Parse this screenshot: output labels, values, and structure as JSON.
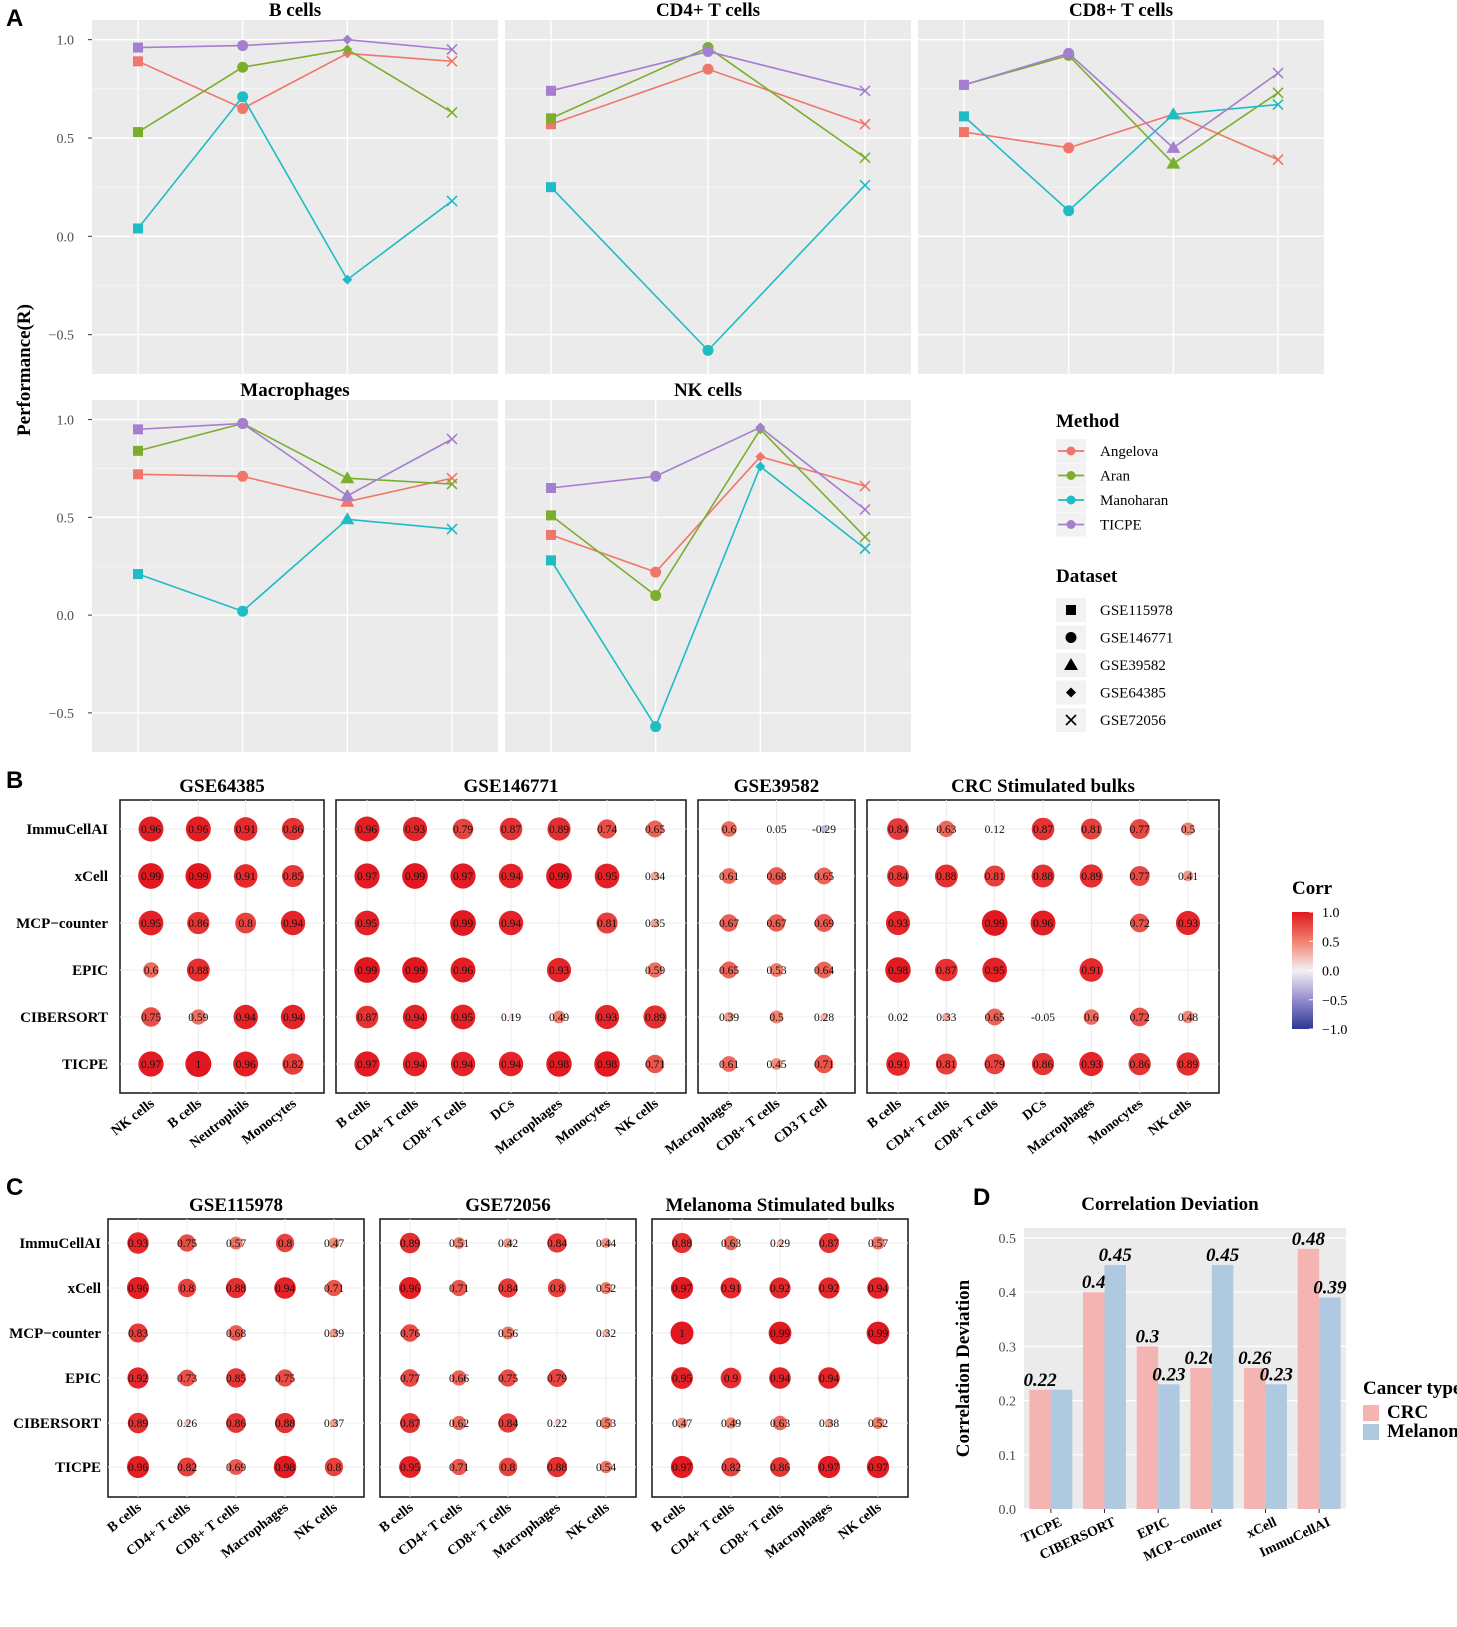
{
  "panel_labels": {
    "a": "A",
    "b": "B",
    "c": "C",
    "d": "D"
  },
  "colors": {
    "Angelova": "#f0756a",
    "Aran": "#7cae2e",
    "Manoharan": "#1fbcc3",
    "TICPE": "#a57fcf",
    "panel_bg": "#ebebeb",
    "grid": "#ffffff",
    "CRC": "#f4b4b1",
    "Melanoma": "#aec9e0"
  },
  "panel_a": {
    "ylabel": "Performance(R)",
    "yticks": [
      "1.0",
      "0.5",
      "0.0",
      "−0.5"
    ],
    "legend": {
      "method_title": "Method",
      "methods": [
        "Angelova",
        "Aran",
        "Manoharan",
        "TICPE"
      ],
      "dataset_title": "Dataset",
      "datasets": [
        "GSE115978",
        "GSE146771",
        "GSE39582",
        "GSE64385",
        "GSE72056"
      ],
      "shapes": [
        "square",
        "circle",
        "triangle",
        "diamond",
        "cross"
      ]
    }
  },
  "panel_b": {
    "rows": [
      "ImmuCellAI",
      "xCell",
      "MCP−counter",
      "EPIC",
      "CIBERSORT",
      "TICPE"
    ],
    "colorbar": {
      "title": "Corr",
      "ticks": [
        "1.0",
        "0.5",
        "0.0",
        "−0.5",
        "−1.0"
      ]
    }
  },
  "panel_c": {
    "rows": [
      "ImmuCellAI",
      "xCell",
      "MCP−counter",
      "EPIC",
      "CIBERSORT",
      "TICPE"
    ]
  },
  "chart_data": [
    {
      "type": "line",
      "panel": "A",
      "facet_order": [
        "B cells",
        "CD4+ T cells",
        "CD8+ T cells",
        "Macrophages",
        "NK cells"
      ],
      "ylim": [
        -0.7,
        1.1
      ],
      "facets": [
        {
          "title": "B cells",
          "x": [
            "GSE115978",
            "GSE146771",
            "GSE64385",
            "GSE72056"
          ],
          "series": [
            {
              "name": "Angelova",
              "values": [
                0.89,
                0.65,
                0.93,
                0.89
              ]
            },
            {
              "name": "Aran",
              "values": [
                0.53,
                0.86,
                0.95,
                0.63
              ]
            },
            {
              "name": "Manoharan",
              "values": [
                0.04,
                0.71,
                -0.22,
                0.18
              ]
            },
            {
              "name": "TICPE",
              "values": [
                0.96,
                0.97,
                1.0,
                0.95
              ]
            }
          ]
        },
        {
          "title": "CD4+ T cells",
          "x": [
            "GSE115978",
            "GSE146771",
            "GSE72056"
          ],
          "series": [
            {
              "name": "Angelova",
              "values": [
                0.57,
                0.85,
                0.57
              ]
            },
            {
              "name": "Aran",
              "values": [
                0.6,
                0.96,
                0.4
              ]
            },
            {
              "name": "Manoharan",
              "values": [
                0.25,
                -0.58,
                0.26
              ]
            },
            {
              "name": "TICPE",
              "values": [
                0.74,
                0.94,
                0.74
              ]
            }
          ]
        },
        {
          "title": "CD8+ T cells",
          "x": [
            "GSE115978",
            "GSE146771",
            "GSE39582",
            "GSE72056"
          ],
          "series": [
            {
              "name": "Angelova",
              "values": [
                0.53,
                0.45,
                0.62,
                0.39
              ]
            },
            {
              "name": "Aran",
              "values": [
                0.77,
                0.92,
                0.37,
                0.73
              ]
            },
            {
              "name": "Manoharan",
              "values": [
                0.61,
                0.13,
                0.62,
                0.67
              ]
            },
            {
              "name": "TICPE",
              "values": [
                0.77,
                0.93,
                0.45,
                0.83
              ]
            }
          ]
        },
        {
          "title": "Macrophages",
          "x": [
            "GSE115978",
            "GSE146771",
            "GSE39582",
            "GSE72056"
          ],
          "series": [
            {
              "name": "Angelova",
              "values": [
                0.72,
                0.71,
                0.58,
                0.7
              ]
            },
            {
              "name": "Aran",
              "values": [
                0.84,
                0.98,
                0.7,
                0.67
              ]
            },
            {
              "name": "Manoharan",
              "values": [
                0.21,
                0.02,
                0.49,
                0.44
              ]
            },
            {
              "name": "TICPE",
              "values": [
                0.95,
                0.98,
                0.61,
                0.9
              ]
            }
          ]
        },
        {
          "title": "NK cells",
          "x": [
            "GSE115978",
            "GSE146771",
            "GSE64385",
            "GSE72056"
          ],
          "series": [
            {
              "name": "Angelova",
              "values": [
                0.41,
                0.22,
                0.81,
                0.66
              ]
            },
            {
              "name": "Aran",
              "values": [
                0.51,
                0.1,
                0.95,
                0.4
              ]
            },
            {
              "name": "Manoharan",
              "values": [
                0.28,
                -0.57,
                0.76,
                0.34
              ]
            },
            {
              "name": "TICPE",
              "values": [
                0.65,
                0.71,
                0.96,
                0.54
              ]
            }
          ]
        }
      ]
    },
    {
      "type": "heatmap",
      "panel": "B",
      "rows": [
        "ImmuCellAI",
        "xCell",
        "MCP−counter",
        "EPIC",
        "CIBERSORT",
        "TICPE"
      ],
      "color_range": [
        -1.0,
        1.0
      ],
      "groups": [
        {
          "title": "GSE64385",
          "columns": [
            "NK cells",
            "B cells",
            "Neutrophils",
            "Monocytes"
          ],
          "values": [
            [
              0.96,
              0.96,
              0.91,
              0.86
            ],
            [
              0.99,
              0.99,
              0.91,
              0.85
            ],
            [
              0.95,
              0.86,
              0.8,
              0.94
            ],
            [
              0.6,
              0.88,
              null,
              null
            ],
            [
              0.75,
              0.59,
              0.94,
              0.94
            ],
            [
              0.97,
              1,
              0.96,
              0.82
            ]
          ]
        },
        {
          "title": "GSE146771",
          "columns": [
            "B cells",
            "CD4+ T cells",
            "CD8+ T cells",
            "DCs",
            "Macrophages",
            "Monocytes",
            "NK cells"
          ],
          "values": [
            [
              0.96,
              0.93,
              0.79,
              0.87,
              0.89,
              0.74,
              0.65
            ],
            [
              0.97,
              0.99,
              0.97,
              0.94,
              0.99,
              0.95,
              0.34
            ],
            [
              0.95,
              null,
              0.99,
              0.94,
              null,
              0.81,
              0.35
            ],
            [
              0.99,
              0.99,
              0.96,
              null,
              0.93,
              null,
              0.59
            ],
            [
              0.87,
              0.94,
              0.95,
              0.19,
              0.49,
              0.93,
              0.89
            ],
            [
              0.97,
              0.94,
              0.94,
              0.94,
              0.98,
              0.98,
              0.71
            ]
          ]
        },
        {
          "title": "GSE39582",
          "columns": [
            "Macrophages",
            "CD8+ T cells",
            "CD3 T cell"
          ],
          "values": [
            [
              0.6,
              0.05,
              -0.29
            ],
            [
              0.61,
              0.68,
              0.65
            ],
            [
              0.67,
              0.67,
              0.69
            ],
            [
              0.65,
              0.53,
              0.64
            ],
            [
              0.39,
              0.5,
              0.28
            ],
            [
              0.61,
              0.45,
              0.71
            ]
          ]
        },
        {
          "title": "CRC Stimulated bulks",
          "columns": [
            "B cells",
            "CD4+ T cells",
            "CD8+ T cells",
            "DCs",
            "Macrophages",
            "Monocytes",
            "NK cells"
          ],
          "values": [
            [
              0.84,
              0.63,
              0.12,
              0.87,
              0.81,
              0.77,
              0.5
            ],
            [
              0.84,
              0.88,
              0.81,
              0.88,
              0.89,
              0.77,
              0.41
            ],
            [
              0.93,
              null,
              0.99,
              0.96,
              null,
              0.72,
              0.93
            ],
            [
              0.98,
              0.87,
              0.95,
              null,
              0.91,
              null,
              null
            ],
            [
              0.02,
              0.33,
              0.65,
              -0.05,
              0.6,
              0.72,
              0.48
            ],
            [
              0.91,
              0.81,
              0.79,
              0.86,
              0.93,
              0.86,
              0.89
            ]
          ]
        }
      ]
    },
    {
      "type": "heatmap",
      "panel": "C",
      "rows": [
        "ImmuCellAI",
        "xCell",
        "MCP−counter",
        "EPIC",
        "CIBERSORT",
        "TICPE"
      ],
      "color_range": [
        -1.0,
        1.0
      ],
      "groups": [
        {
          "title": "GSE115978",
          "columns": [
            "B cells",
            "CD4+ T cells",
            "CD8+ T cells",
            "Macrophages",
            "NK cells"
          ],
          "values": [
            [
              0.93,
              0.75,
              0.57,
              0.8,
              0.47
            ],
            [
              0.96,
              0.8,
              0.88,
              0.94,
              0.71
            ],
            [
              0.83,
              null,
              0.68,
              null,
              0.39
            ],
            [
              0.92,
              0.73,
              0.85,
              0.75,
              null
            ],
            [
              0.89,
              0.26,
              0.86,
              0.88,
              0.37
            ],
            [
              0.96,
              0.82,
              0.69,
              0.98,
              0.8
            ]
          ]
        },
        {
          "title": "GSE72056",
          "columns": [
            "B cells",
            "CD4+ T cells",
            "CD8+ T cells",
            "Macrophages",
            "NK cells"
          ],
          "values": [
            [
              0.89,
              0.51,
              0.42,
              0.84,
              0.44
            ],
            [
              0.96,
              0.71,
              0.84,
              0.8,
              0.52
            ],
            [
              0.76,
              null,
              0.56,
              null,
              0.32
            ],
            [
              0.77,
              0.66,
              0.75,
              0.79,
              null
            ],
            [
              0.87,
              0.62,
              0.84,
              0.22,
              0.53
            ],
            [
              0.95,
              0.71,
              0.8,
              0.88,
              0.54
            ]
          ]
        },
        {
          "title": "Melanoma Stimulated bulks",
          "columns": [
            "B cells",
            "CD4+ T cells",
            "CD8+ T cells",
            "Macrophages",
            "NK cells"
          ],
          "values": [
            [
              0.88,
              0.63,
              0.29,
              0.87,
              0.57
            ],
            [
              0.97,
              0.91,
              0.92,
              0.92,
              0.94
            ],
            [
              1,
              null,
              0.99,
              null,
              0.99
            ],
            [
              0.95,
              0.9,
              0.94,
              0.94,
              null
            ],
            [
              0.47,
              0.49,
              0.63,
              0.38,
              0.52
            ],
            [
              0.97,
              0.82,
              0.86,
              0.97,
              0.97
            ]
          ]
        }
      ]
    },
    {
      "type": "bar",
      "panel": "D",
      "title": "Correlation Deviation",
      "ylabel": "Correlation Deviation",
      "xlabel": "",
      "ylim": [
        0,
        0.5
      ],
      "yticks": [
        "0.0",
        "0.1",
        "0.2",
        "0.3",
        "0.4",
        "0.5"
      ],
      "categories": [
        "TICPE",
        "CIBERSORT",
        "EPIC",
        "MCP−counter",
        "xCell",
        "ImmuCellAI"
      ],
      "legend_title": "Cancer type",
      "series": [
        {
          "name": "CRC",
          "values": [
            0.22,
            0.4,
            0.3,
            0.26,
            0.26,
            0.48
          ],
          "labels": [
            "0.22",
            "0.4",
            "0.3",
            "0.26",
            "0.26",
            "0.48"
          ]
        },
        {
          "name": "Melanoma",
          "values": [
            0.22,
            0.45,
            0.23,
            0.45,
            0.23,
            0.39
          ],
          "labels": [
            "",
            "0.45",
            "0.23",
            "0.45",
            "0.23",
            "0.39"
          ]
        }
      ]
    }
  ]
}
